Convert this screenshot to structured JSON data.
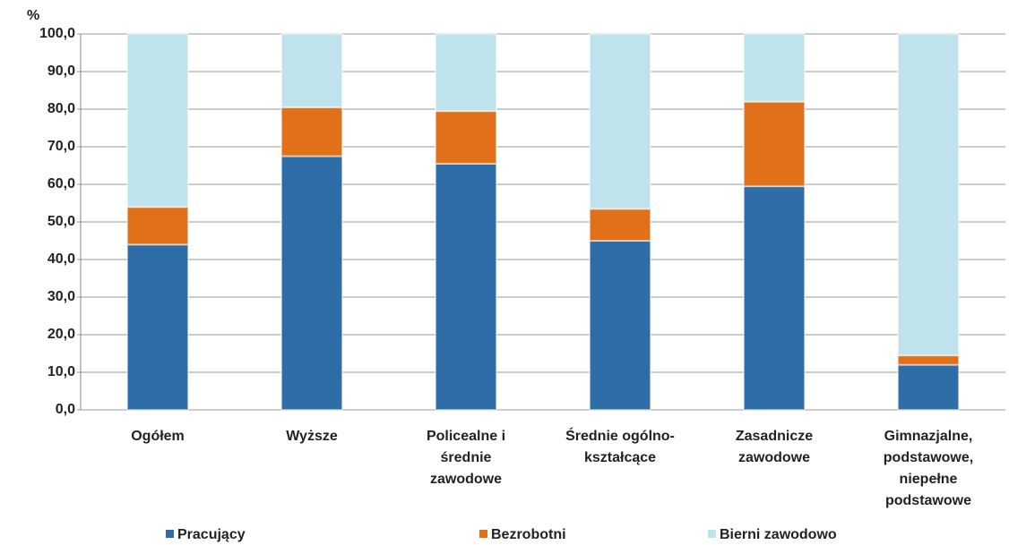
{
  "chart_data": {
    "type": "stacked_bar",
    "y_label": "%",
    "categories": [
      [
        "Ogółem"
      ],
      [
        "Wyższe"
      ],
      [
        "Policealne  i",
        "średnie",
        "zawodowe"
      ],
      [
        "Średnie ogólno-",
        "kształcące"
      ],
      [
        "Zasadnicze",
        "zawodowe"
      ],
      [
        "Gimnazjalne,",
        "podstawowe,",
        "niepełne",
        "podstawowe"
      ]
    ],
    "series": [
      {
        "name": "Pracujący",
        "color": "#2f6da8",
        "values": [
          44,
          67.5,
          65.5,
          45,
          59.5,
          12
        ]
      },
      {
        "name": "Bezrobotni",
        "color": "#e0701a",
        "values": [
          10,
          13,
          14,
          8.5,
          22.5,
          2.5
        ]
      },
      {
        "name": "Bierni zawodowo",
        "color": "#bfe3ec",
        "values": [
          46,
          19.5,
          20.5,
          46.5,
          18,
          85.5
        ]
      }
    ],
    "ylim": [
      0,
      100
    ],
    "yticks": [
      {
        "value": 0,
        "label": "0,0"
      },
      {
        "value": 10,
        "label": "10,0"
      },
      {
        "value": 20,
        "label": "20,0"
      },
      {
        "value": 30,
        "label": "30,0"
      },
      {
        "value": 40,
        "label": "40,0"
      },
      {
        "value": 50,
        "label": "50,0"
      },
      {
        "value": 60,
        "label": "60,0"
      },
      {
        "value": 70,
        "label": "70,0"
      },
      {
        "value": 80,
        "label": "80,0"
      },
      {
        "value": 90,
        "label": "90,0"
      },
      {
        "value": 100,
        "label": "100,0"
      }
    ],
    "grid": true,
    "legend": "bottom"
  }
}
